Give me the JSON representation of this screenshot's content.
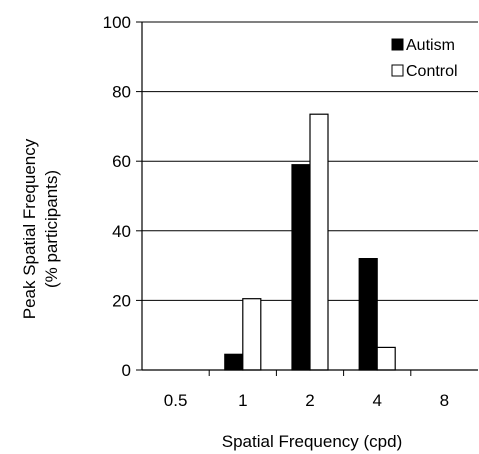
{
  "chart_data": {
    "type": "bar",
    "categories": [
      "0.5",
      "1",
      "2",
      "4",
      "8"
    ],
    "series": [
      {
        "name": "Autism",
        "values": [
          0,
          4.5,
          59,
          32,
          0
        ],
        "color": "#000000"
      },
      {
        "name": "Control",
        "values": [
          0,
          20.5,
          73.5,
          6.5,
          0
        ],
        "color": "#ffffff"
      }
    ],
    "xlabel": "Spatial Frequency (cpd)",
    "ylabel_line1": "Peak Spatial Frequency",
    "ylabel_line2": "(% participants)",
    "ylim": [
      0,
      100
    ],
    "yticks": [
      0,
      20,
      40,
      60,
      80,
      100
    ],
    "grid": true,
    "legend_position": "top-right"
  }
}
